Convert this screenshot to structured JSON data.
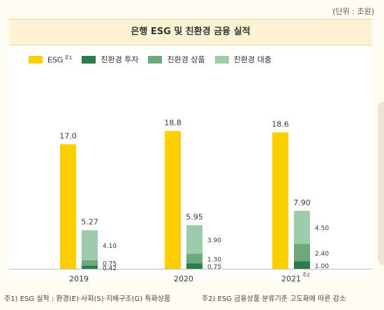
{
  "unit_label": "(단위 : 조원)",
  "colors": {
    "esg": "#fccf00",
    "investment": "#2a7d48",
    "product": "#6ba87a",
    "loan": "#9dcaa8"
  },
  "chart_data": {
    "type": "bar",
    "title": "은행 ESG 및 친환경 금융 실적",
    "categories": [
      "2019",
      "2020",
      "2021"
    ],
    "category_notes": [
      "",
      "",
      "주2"
    ],
    "legend": [
      {
        "key": "esg",
        "label": "ESG",
        "note": "주1"
      },
      {
        "key": "investment",
        "label": "친환경 투자",
        "note": ""
      },
      {
        "key": "product",
        "label": "친환경 상품",
        "note": ""
      },
      {
        "key": "loan",
        "label": "친환경 대출",
        "note": ""
      }
    ],
    "esg": {
      "values": [
        17.0,
        18.8,
        18.6
      ],
      "labels": [
        "17.0",
        "18.8",
        "18.6"
      ]
    },
    "stack_order": [
      "investment",
      "product",
      "loan"
    ],
    "stacked": {
      "investment": {
        "values": [
          0.42,
          0.75,
          1.0
        ],
        "labels": [
          "0.42",
          "0.75",
          "1.00"
        ]
      },
      "product": {
        "values": [
          0.75,
          1.3,
          2.4
        ],
        "labels": [
          "0.75",
          "1.30",
          "2.40"
        ]
      },
      "loan": {
        "values": [
          4.1,
          3.9,
          4.5
        ],
        "labels": [
          "4.10",
          "3.90",
          "4.50"
        ]
      }
    },
    "stack_totals": {
      "values": [
        5.27,
        5.95,
        7.9
      ],
      "labels": [
        "5.27",
        "5.95",
        "7.90"
      ]
    },
    "legend_position": "top-left",
    "grid": false
  },
  "footnotes": {
    "note1": "주1) ESG 실적 : 환경(E)·사회(S)·지배구조(G) 특화상품",
    "note2": "주2) ESG 금융상품 분류기준 고도화에 따른 감소"
  }
}
